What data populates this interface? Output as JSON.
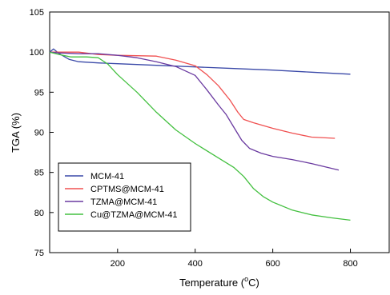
{
  "chart_data": {
    "type": "line",
    "xlabel_main": "Temperature (",
    "xlabel_sup": "o",
    "xlabel_tail": "C)",
    "ylabel": "TGA (%)",
    "xlim": [
      25,
      900
    ],
    "ylim": [
      75,
      105
    ],
    "xticks": [
      200,
      400,
      600,
      800
    ],
    "yticks": [
      75,
      80,
      85,
      90,
      95,
      100,
      105
    ],
    "grid": false,
    "legend_position": "lower-left",
    "series": [
      {
        "name": "MCM-41",
        "color": "#3a49a8",
        "points": [
          [
            25,
            100
          ],
          [
            35,
            100.4
          ],
          [
            50,
            99.8
          ],
          [
            75,
            99.1
          ],
          [
            100,
            98.8
          ],
          [
            150,
            98.65
          ],
          [
            200,
            98.55
          ],
          [
            300,
            98.35
          ],
          [
            400,
            98.15
          ],
          [
            500,
            97.95
          ],
          [
            600,
            97.75
          ],
          [
            700,
            97.5
          ],
          [
            800,
            97.25
          ]
        ]
      },
      {
        "name": "CPTMS@MCM-41",
        "color": "#f05050",
        "points": [
          [
            25,
            100
          ],
          [
            50,
            100
          ],
          [
            100,
            100
          ],
          [
            150,
            99.7
          ],
          [
            200,
            99.6
          ],
          [
            250,
            99.55
          ],
          [
            300,
            99.5
          ],
          [
            350,
            99.0
          ],
          [
            400,
            98.3
          ],
          [
            430,
            97.2
          ],
          [
            460,
            95.8
          ],
          [
            490,
            94.0
          ],
          [
            510,
            92.5
          ],
          [
            525,
            91.6
          ],
          [
            550,
            91.2
          ],
          [
            600,
            90.5
          ],
          [
            650,
            89.9
          ],
          [
            700,
            89.4
          ],
          [
            760,
            89.25
          ]
        ]
      },
      {
        "name": "TZMA@MCM-41",
        "color": "#6a3aa0",
        "points": [
          [
            25,
            100
          ],
          [
            50,
            99.9
          ],
          [
            100,
            99.8
          ],
          [
            150,
            99.8
          ],
          [
            200,
            99.6
          ],
          [
            250,
            99.3
          ],
          [
            300,
            98.8
          ],
          [
            350,
            98.2
          ],
          [
            400,
            97.1
          ],
          [
            430,
            95.3
          ],
          [
            460,
            93.4
          ],
          [
            480,
            92.2
          ],
          [
            500,
            90.6
          ],
          [
            520,
            89.0
          ],
          [
            540,
            88.0
          ],
          [
            570,
            87.4
          ],
          [
            600,
            87.0
          ],
          [
            650,
            86.6
          ],
          [
            700,
            86.1
          ],
          [
            770,
            85.3
          ]
        ]
      },
      {
        "name": "Cu@TZMA@MCM-41",
        "color": "#44c040",
        "points": [
          [
            25,
            100
          ],
          [
            50,
            99.7
          ],
          [
            80,
            99.4
          ],
          [
            120,
            99.4
          ],
          [
            150,
            99.3
          ],
          [
            175,
            98.5
          ],
          [
            200,
            97.2
          ],
          [
            250,
            95.0
          ],
          [
            300,
            92.5
          ],
          [
            350,
            90.3
          ],
          [
            400,
            88.6
          ],
          [
            450,
            87.1
          ],
          [
            500,
            85.6
          ],
          [
            525,
            84.5
          ],
          [
            550,
            83.0
          ],
          [
            575,
            82.0
          ],
          [
            600,
            81.3
          ],
          [
            650,
            80.3
          ],
          [
            700,
            79.7
          ],
          [
            750,
            79.35
          ],
          [
            800,
            79.05
          ]
        ]
      }
    ]
  }
}
